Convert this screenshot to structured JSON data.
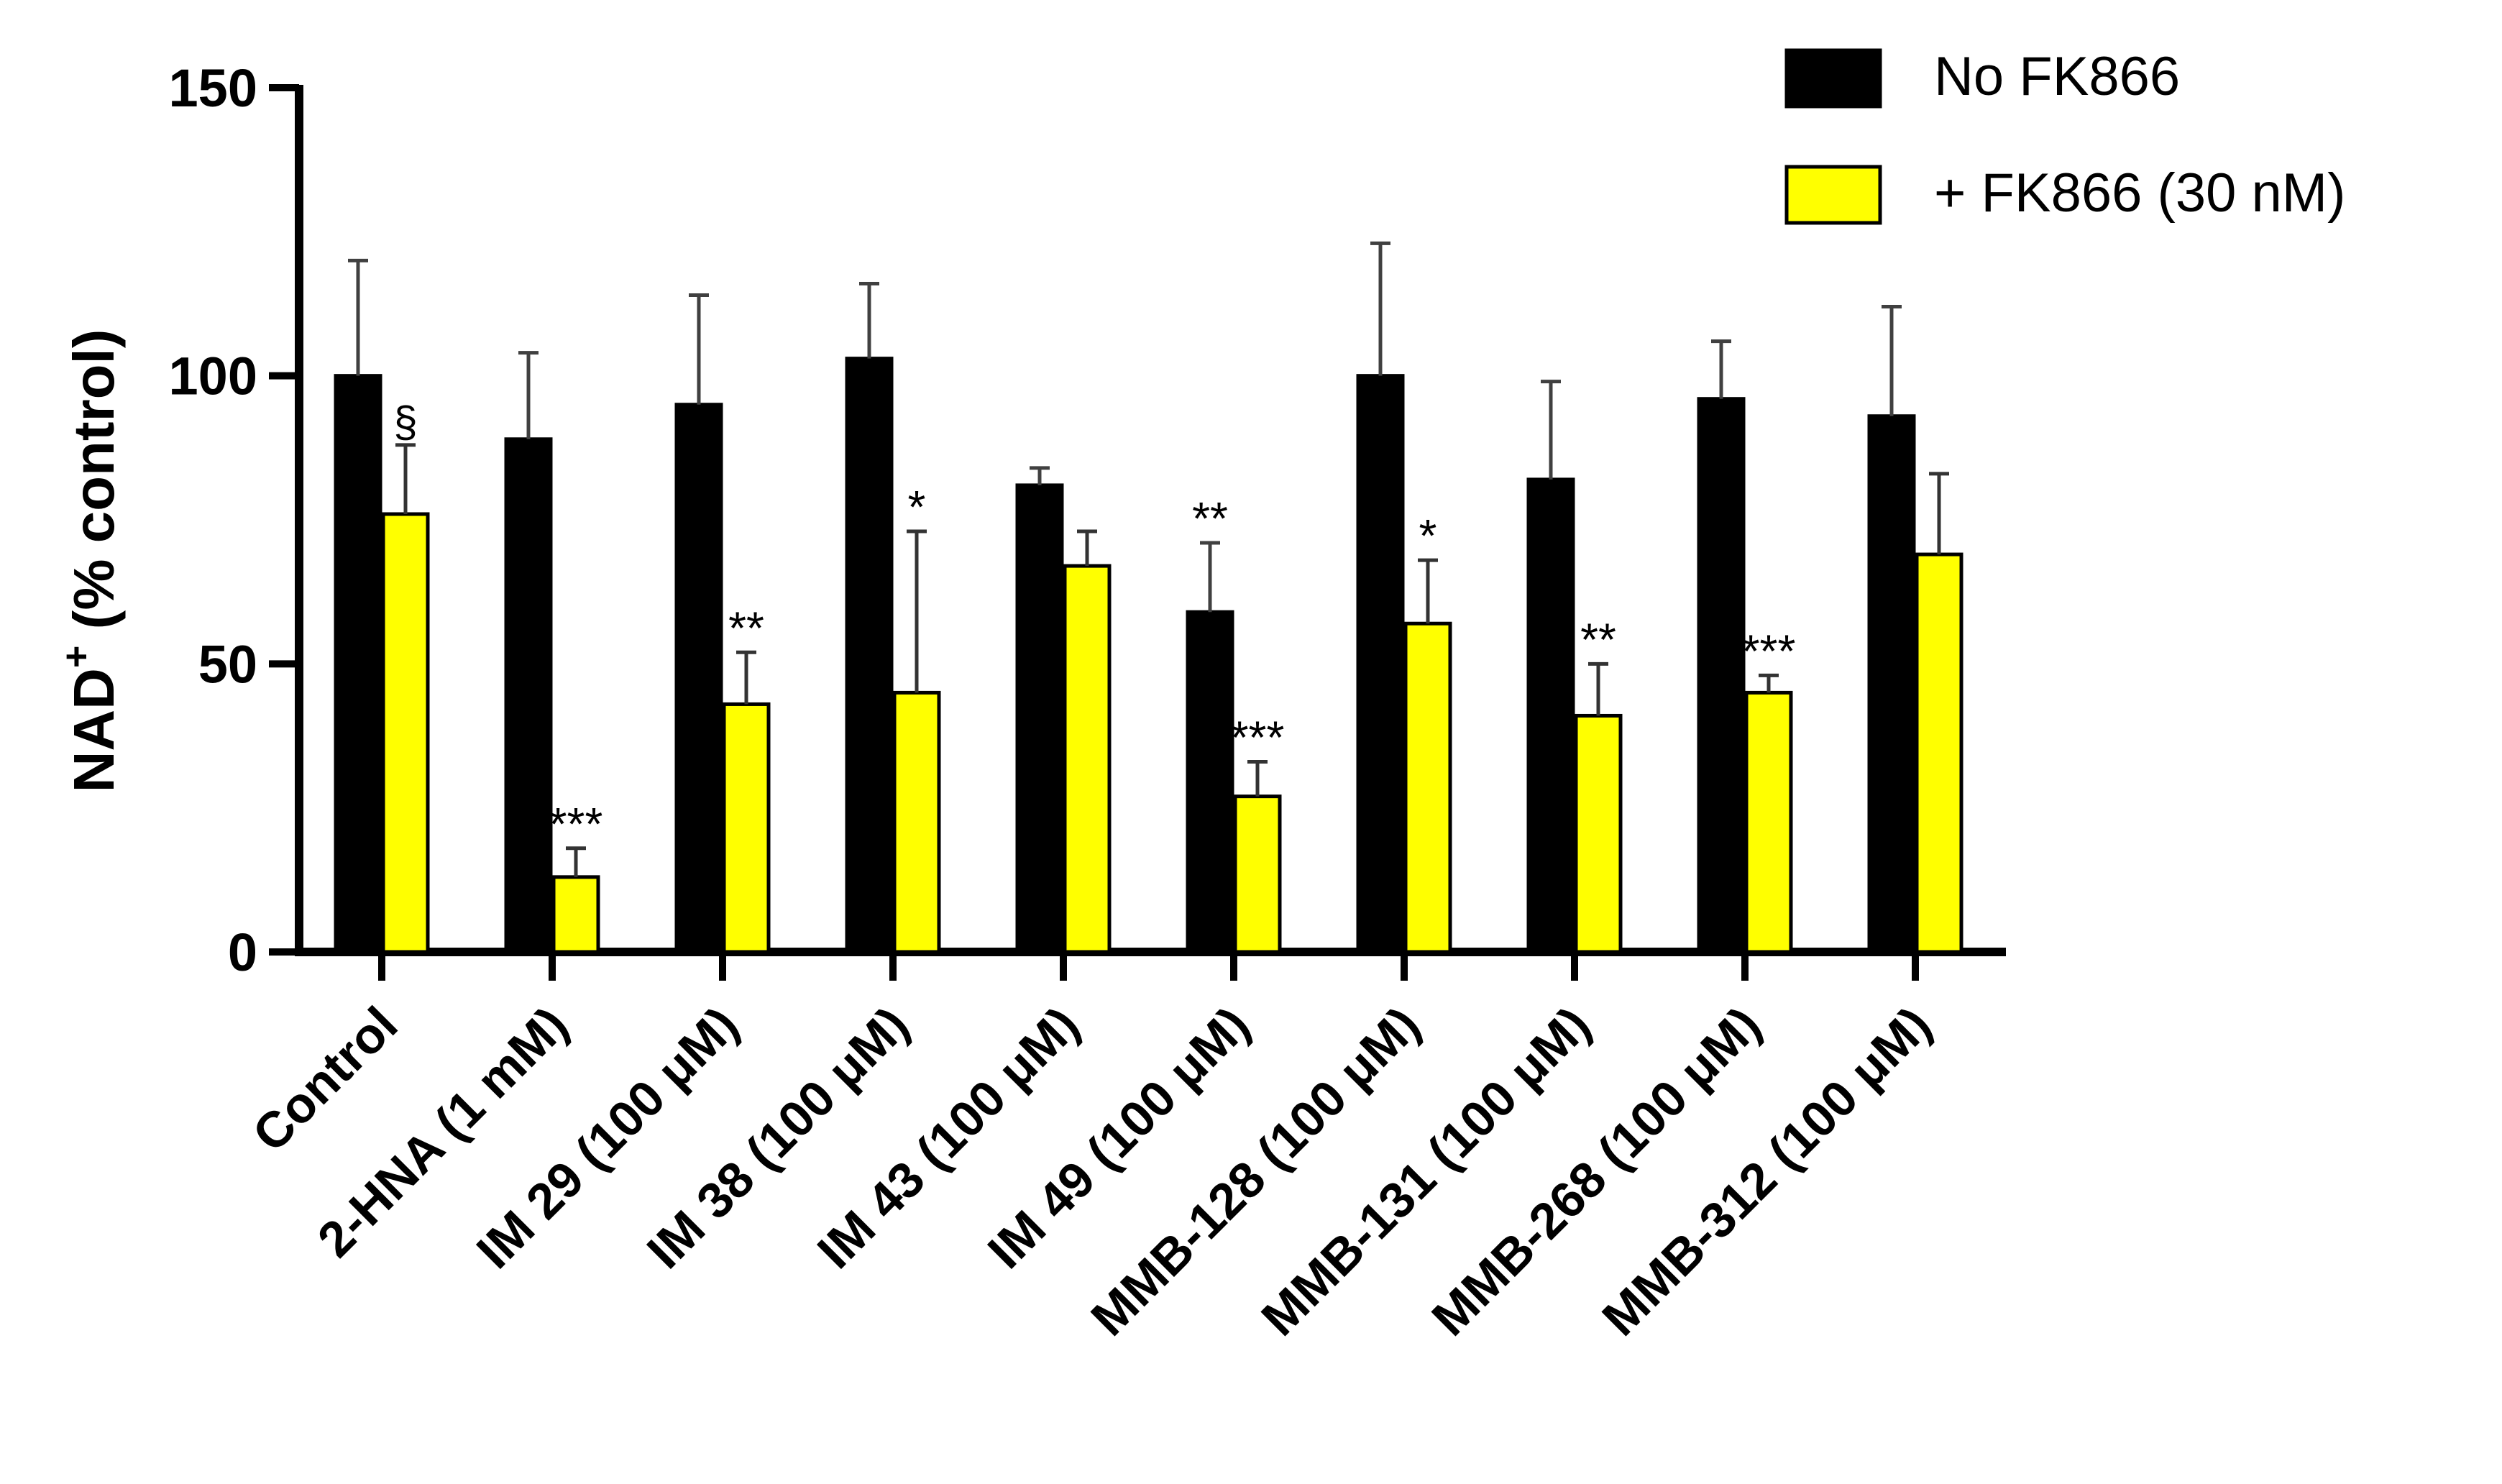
{
  "chart_data": {
    "type": "bar",
    "title": "",
    "xlabel": "",
    "ylabel": "NAD",
    "ylabel_superscript": "+",
    "ylabel_suffix": " (% control)",
    "ylim": [
      0,
      150
    ],
    "yticks": [
      "0",
      "50",
      "100",
      "150"
    ],
    "grid": false,
    "legend_position": "top-right",
    "categories": [
      "Control",
      "2-HNA (1 mM)",
      "IM 29 (100 μM)",
      "IM 38 (100 μM)",
      "IM 43 (100 μM)",
      "IM 49 (100 μM)",
      "MMB-128 (100 μM)",
      "MMB-131 (100 μM)",
      "MMB-268 (100 μM)",
      "MMB-312 (100 μM)"
    ],
    "series": [
      {
        "name": "No FK866",
        "color": "#000000",
        "values": [
          100,
          89,
          95,
          103,
          81,
          59,
          100,
          82,
          96,
          93
        ],
        "errors": [
          20,
          15,
          19,
          13,
          3,
          12,
          23,
          17,
          10,
          19
        ],
        "significance": [
          "",
          "",
          "",
          "",
          "",
          "**",
          "",
          "",
          "",
          ""
        ]
      },
      {
        "name": "+ FK866 (30 nM)",
        "color": "#ffff00",
        "values": [
          76,
          13,
          43,
          45,
          67,
          27,
          57,
          41,
          45,
          69
        ],
        "errors": [
          12,
          5,
          9,
          28,
          6,
          6,
          11,
          9,
          3,
          14
        ],
        "significance": [
          "§",
          "***",
          "**",
          "*",
          "",
          "***",
          "*",
          "**",
          "***",
          ""
        ]
      }
    ]
  }
}
